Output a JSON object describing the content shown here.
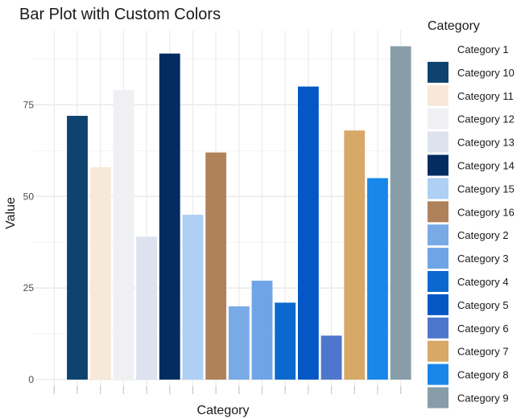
{
  "chart_data": {
    "type": "bar",
    "title": "Bar Plot with Custom Colors",
    "xlabel": "Category",
    "ylabel": "Value",
    "ylim": [
      0,
      93
    ],
    "yticks": [
      0,
      25,
      50,
      75
    ],
    "grid": true,
    "legend": {
      "title": "Category",
      "position": "right"
    },
    "categories": [
      "Category 1",
      "Category 10",
      "Category 11",
      "Category 12",
      "Category 13",
      "Category 14",
      "Category 15",
      "Category 16",
      "Category 2",
      "Category 3",
      "Category 4",
      "Category 5",
      "Category 6",
      "Category 7",
      "Category 8",
      "Category 9"
    ],
    "values": [
      0,
      72,
      58,
      79,
      39,
      89,
      45,
      62,
      20,
      27,
      21,
      80,
      12,
      68,
      55,
      91
    ],
    "colors": [
      "#ffffff",
      "#0e4370",
      "#f8e8d9",
      "#f0f0f4",
      "#dce2ee",
      "#032c61",
      "#add0f4",
      "#b0825b",
      "#78aae6",
      "#6fa5e6",
      "#0b68cf",
      "#0457c4",
      "#4e76cc",
      "#d7a866",
      "#1986ea",
      "#879ea9"
    ]
  }
}
